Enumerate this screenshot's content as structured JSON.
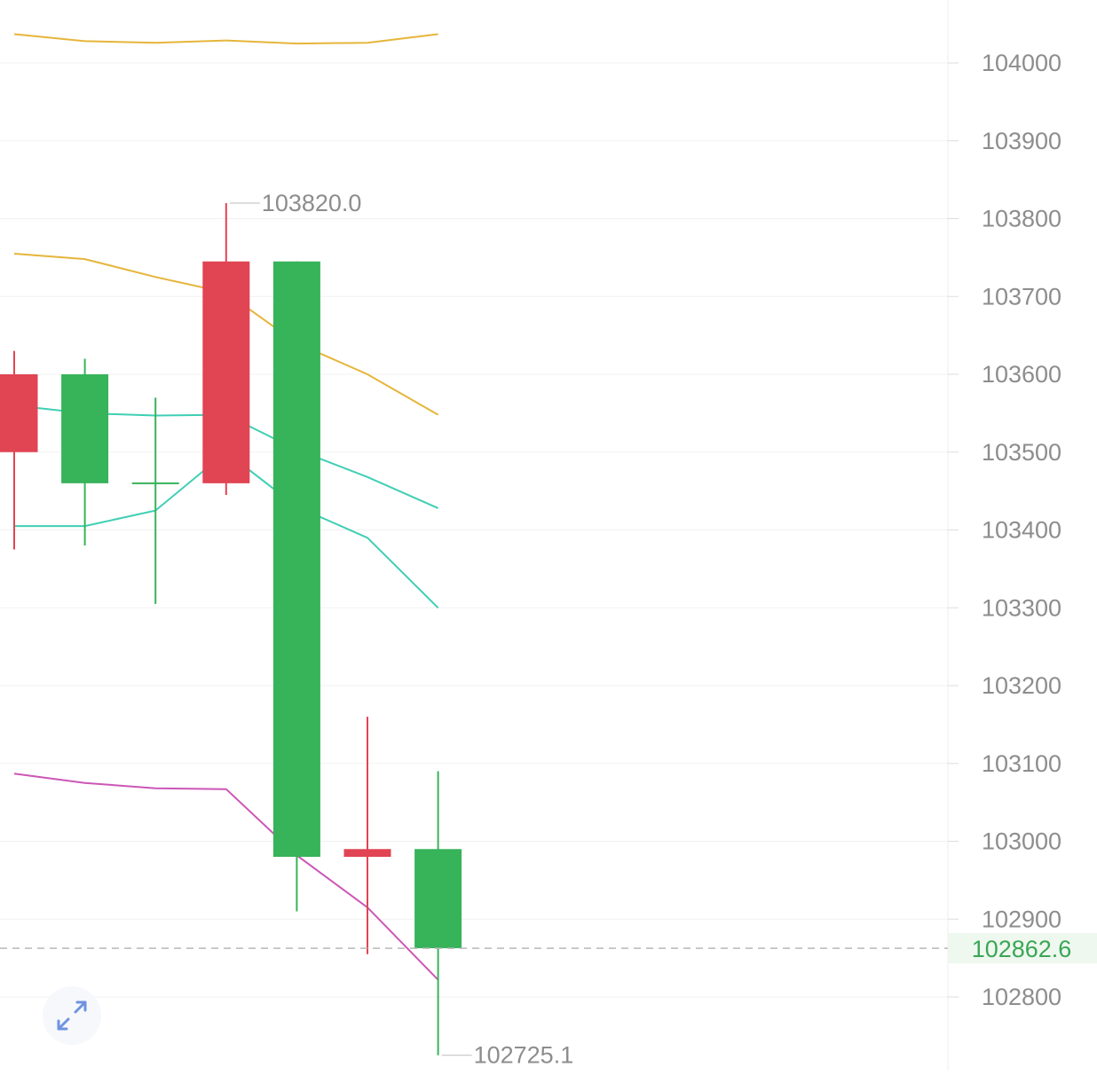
{
  "chart_data": {
    "type": "candlestick",
    "title": "",
    "ylim": [
      102700,
      104080
    ],
    "y_ticks": [
      "104000",
      "103900",
      "103800",
      "103700",
      "103600",
      "103500",
      "103400",
      "103300",
      "103200",
      "103100",
      "103000",
      "102900",
      "102800"
    ],
    "current_price": {
      "label": "102862.6",
      "value": 102862.6
    },
    "max_marker": {
      "label": "103820.0",
      "value": 103820.0
    },
    "min_marker": {
      "label": "102725.1",
      "value": 102725.1
    },
    "candles": [
      {
        "open": 103500,
        "close": 103600,
        "high": 103630,
        "low": 103375
      },
      {
        "open": 103600,
        "close": 103460,
        "high": 103620,
        "low": 103380
      },
      {
        "open": 103460,
        "close": 103460,
        "high": 103570,
        "low": 103305
      },
      {
        "open": 103460,
        "close": 103745,
        "high": 103820,
        "low": 103445
      },
      {
        "open": 103745,
        "close": 102980,
        "high": 103745,
        "low": 102910
      },
      {
        "open": 102980,
        "close": 102990,
        "high": 103160,
        "low": 102855
      },
      {
        "open": 102990,
        "close": 102862.6,
        "high": 103090,
        "low": 102725.1
      }
    ],
    "series": [
      {
        "color": "#e6b53a",
        "values": [
          104037,
          104028,
          104026,
          104029,
          104025,
          104026,
          104037
        ]
      },
      {
        "color": "#e6b53a",
        "values": [
          103755,
          103748,
          103725,
          103705,
          103640,
          103600,
          103548
        ]
      },
      {
        "color": "#3fcfb4",
        "values": [
          103560,
          103550,
          103547,
          103548,
          103503,
          103468,
          103428
        ]
      },
      {
        "color": "#3fcfb4",
        "values": [
          103405,
          103405,
          103425,
          103500,
          103430,
          103390,
          103300
        ]
      },
      {
        "color": "#cc56b6",
        "values": [
          103087,
          103075,
          103068,
          103067,
          102982,
          102915,
          102822
        ]
      }
    ],
    "colors": {
      "up": "#37b35a",
      "down": "#e14452",
      "grid": "#f1f1f1",
      "axis_text": "#8d8d8d",
      "price_line": "#b8b8b8",
      "price_label": "#3aa655",
      "price_label_bg": "#eef8ef",
      "marker_text": "#8d8d8d"
    }
  },
  "icons": {
    "expand": "expand-arrows-icon"
  }
}
